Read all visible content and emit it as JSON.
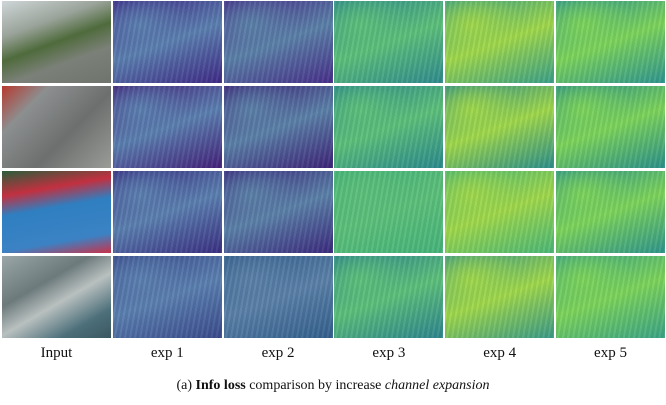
{
  "columns": [
    "Input",
    "exp 1",
    "exp 2",
    "exp 3",
    "exp 4",
    "exp 5"
  ],
  "caption": {
    "label": "(a)",
    "bold": "Info loss",
    "text": "comparison by increase",
    "italic": "channel expansion"
  }
}
